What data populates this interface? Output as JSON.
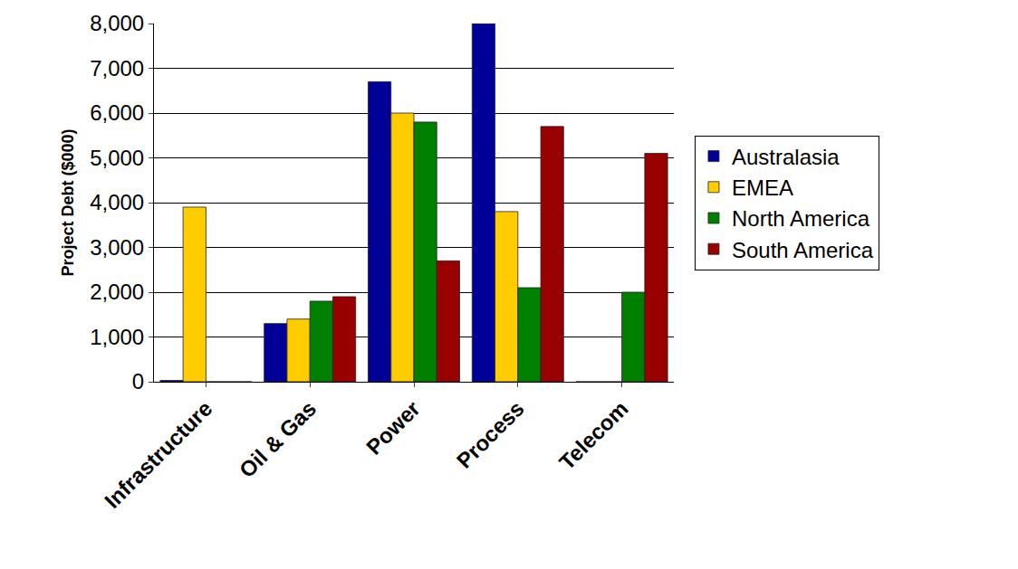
{
  "chart_data": {
    "type": "bar",
    "y_label": "Project Debt ($000)",
    "categories": [
      "Infrastructure",
      "Oil & Gas",
      "Power",
      "Process",
      "Telecom"
    ],
    "series": [
      {
        "name": "Australasia",
        "color": "#000099",
        "values": [
          30,
          1300,
          6700,
          8000,
          0
        ]
      },
      {
        "name": "EMEA",
        "color": "#FFCC00",
        "values": [
          3900,
          1400,
          6000,
          3800,
          0
        ]
      },
      {
        "name": "North America",
        "color": "#008000",
        "values": [
          0,
          1800,
          5800,
          2100,
          2000
        ]
      },
      {
        "name": "South America",
        "color": "#990000",
        "values": [
          0,
          1900,
          2700,
          5700,
          5100
        ]
      }
    ],
    "ylim": [
      0,
      8000
    ],
    "yticks": [
      0,
      {
        "value": 1000,
        "label": "1,000"
      },
      {
        "value": 2000,
        "label": "2,000"
      },
      {
        "value": 3000,
        "label": "3,000"
      },
      {
        "value": 4000,
        "label": "4,000"
      },
      {
        "value": 5000,
        "label": "5,000"
      },
      {
        "value": 6000,
        "label": "6,000"
      },
      {
        "value": 7000,
        "label": "7,000"
      },
      {
        "value": 8000,
        "label": "8,000"
      }
    ],
    "grid": true,
    "legend": "right"
  }
}
